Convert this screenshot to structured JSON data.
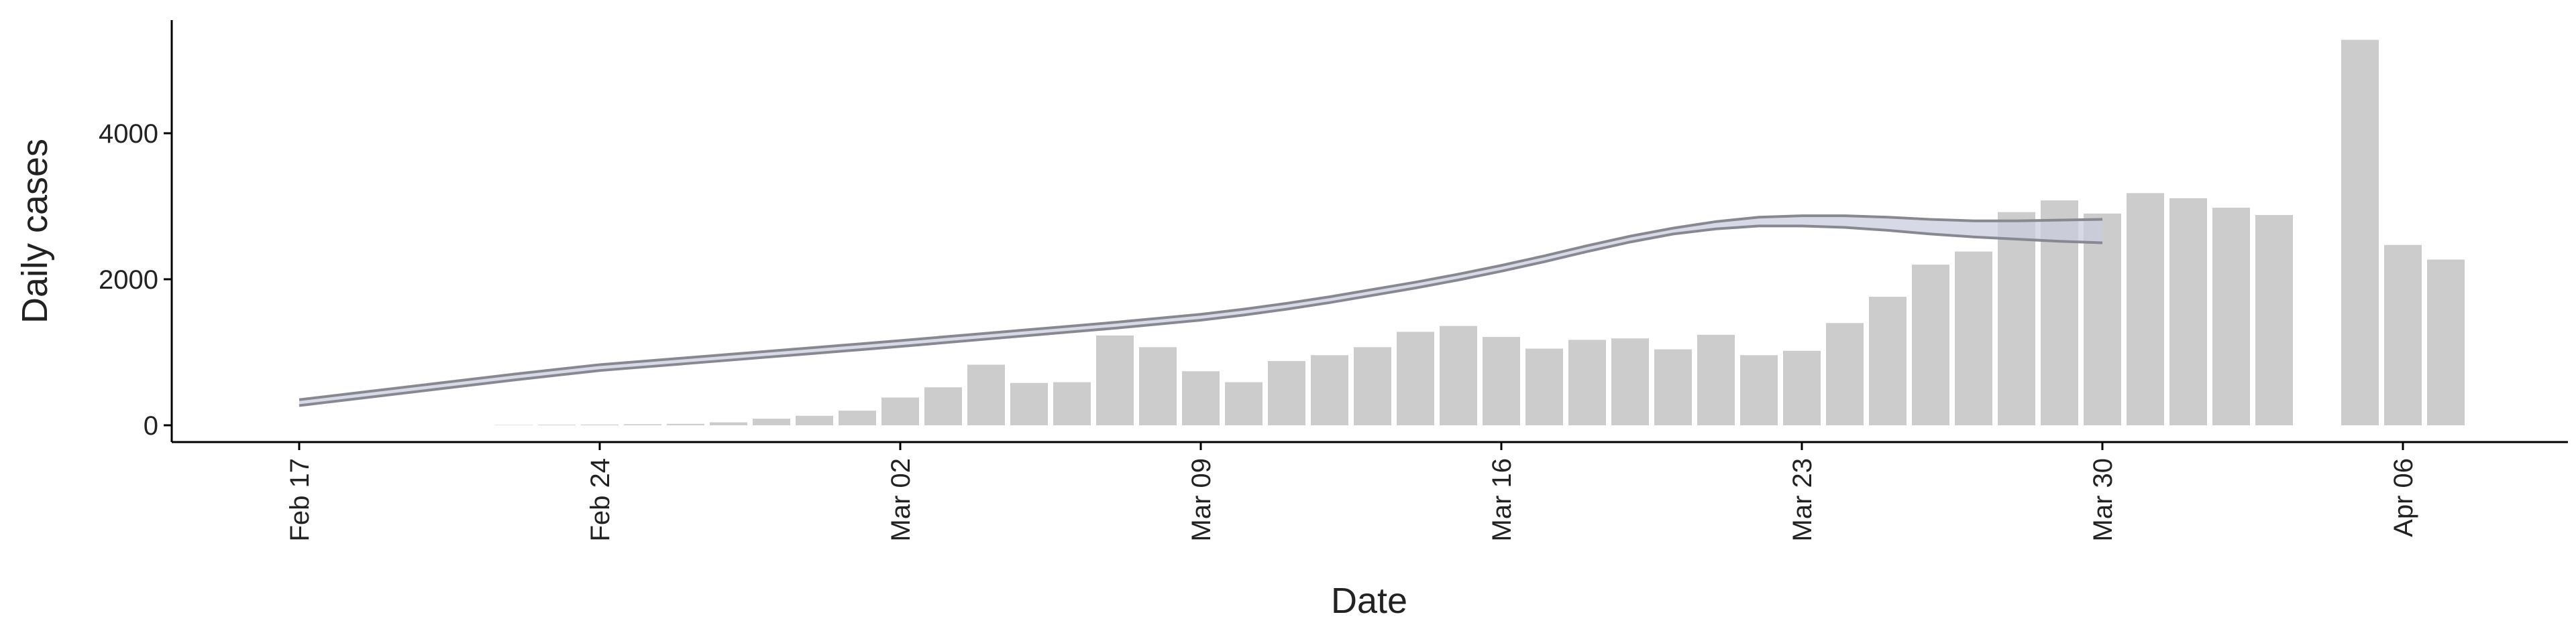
{
  "chart_data": {
    "type": "bar",
    "x_label": "Date",
    "y_label": "Daily cases",
    "dates": [
      "Feb 17",
      "Feb 18",
      "Feb 19",
      "Feb 20",
      "Feb 21",
      "Feb 22",
      "Feb 23",
      "Feb 24",
      "Feb 25",
      "Feb 26",
      "Feb 27",
      "Feb 28",
      "Feb 29",
      "Mar 01",
      "Mar 02",
      "Mar 03",
      "Mar 04",
      "Mar 05",
      "Mar 06",
      "Mar 07",
      "Mar 08",
      "Mar 09",
      "Mar 10",
      "Mar 11",
      "Mar 12",
      "Mar 13",
      "Mar 14",
      "Mar 15",
      "Mar 16",
      "Mar 17",
      "Mar 18",
      "Mar 19",
      "Mar 20",
      "Mar 21",
      "Mar 22",
      "Mar 23",
      "Mar 24",
      "Mar 25",
      "Mar 26",
      "Mar 27",
      "Mar 28",
      "Mar 29",
      "Mar 30",
      "Mar 31",
      "Apr 01",
      "Apr 02",
      "Apr 03",
      "Apr 04",
      "Apr 05",
      "Apr 06",
      "Apr 07"
    ],
    "values": [
      null,
      null,
      null,
      null,
      null,
      5,
      8,
      10,
      15,
      20,
      40,
      90,
      130,
      200,
      380,
      520,
      830,
      580,
      590,
      1230,
      1070,
      740,
      590,
      880,
      960,
      1070,
      1280,
      1360,
      1210,
      1050,
      1170,
      1190,
      1040,
      1240,
      960,
      1020,
      1400,
      1760,
      2200,
      2380,
      2920,
      3080,
      2900,
      3180,
      3110,
      2980,
      2880,
      null,
      5280,
      2470,
      2270
    ],
    "color": "#cccccc",
    "ribbon": {
      "color": "#c9cddd",
      "line_color": "#888890",
      "lower": [
        270,
        340,
        410,
        480,
        550,
        620,
        685,
        750,
        797,
        844,
        891,
        938,
        985,
        1032,
        1080,
        1130,
        1180,
        1230,
        1280,
        1330,
        1385,
        1440,
        1510,
        1590,
        1680,
        1780,
        1880,
        1990,
        2110,
        2240,
        2380,
        2510,
        2620,
        2690,
        2730,
        2730,
        2710,
        2670,
        2620,
        2580,
        2550,
        2520,
        2500,
        null,
        null,
        null,
        null,
        null,
        null,
        null,
        null
      ],
      "upper": [
        350,
        420,
        490,
        560,
        630,
        700,
        765,
        830,
        877,
        924,
        971,
        1018,
        1065,
        1112,
        1160,
        1210,
        1260,
        1310,
        1360,
        1410,
        1465,
        1520,
        1590,
        1670,
        1760,
        1860,
        1960,
        2070,
        2190,
        2320,
        2460,
        2590,
        2700,
        2790,
        2850,
        2870,
        2870,
        2850,
        2820,
        2800,
        2800,
        2810,
        2820,
        null,
        null,
        null,
        null,
        null,
        null,
        null,
        null
      ]
    },
    "xticks": [
      "Feb 17",
      "Feb 24",
      "Mar 02",
      "Mar 09",
      "Mar 16",
      "Mar 23",
      "Mar 30",
      "Apr 06"
    ],
    "ylim": [
      -230,
      5550
    ],
    "yticks": [
      0,
      2000,
      4000
    ],
    "grid": false
  }
}
